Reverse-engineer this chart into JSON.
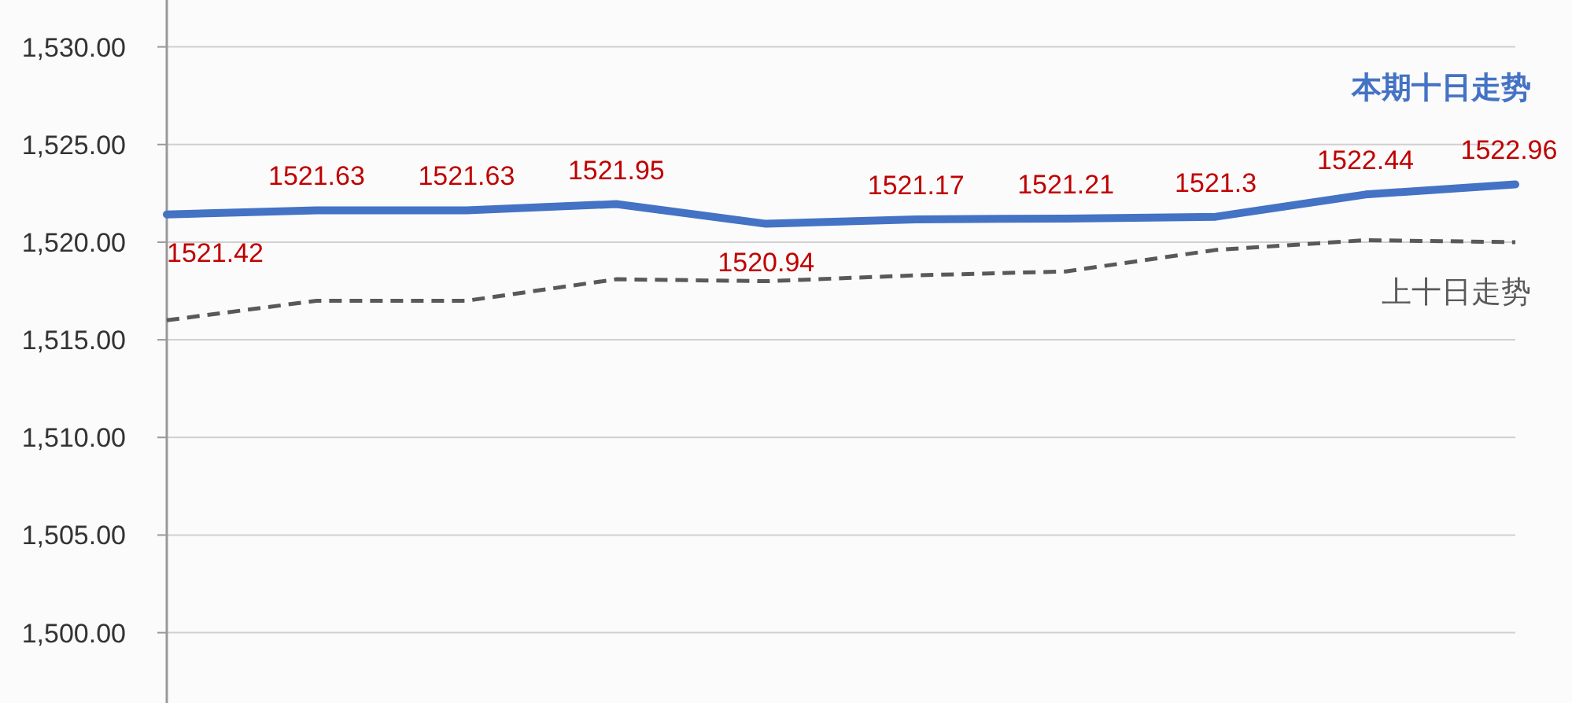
{
  "chart_data": {
    "type": "line",
    "categories": [
      null,
      null,
      null,
      null,
      null,
      null,
      null,
      null,
      null,
      null
    ],
    "series": [
      {
        "name": "本期十日走势",
        "color": "#4472c4",
        "line_style": "solid",
        "values": [
          1521.42,
          1521.63,
          1521.63,
          1521.95,
          1520.94,
          1521.17,
          1521.21,
          1521.3,
          1522.44,
          1522.96
        ],
        "value_labels": [
          "1521.42",
          "1521.63",
          "1521.63",
          "1521.95",
          "1520.94",
          "1521.17",
          "1521.21",
          "1521.3",
          "1522.44",
          "1522.96"
        ]
      },
      {
        "name": "上十日走势",
        "color": "#595959",
        "line_style": "dashed",
        "values": [
          1516.0,
          1517.0,
          1517.0,
          1518.1,
          1518.0,
          1518.3,
          1518.5,
          1519.6,
          1520.1,
          1520.0
        ]
      }
    ],
    "ylim": [
      1496.4,
      1532.4
    ],
    "yticks": [
      {
        "value": 1500,
        "label": "1,500.00"
      },
      {
        "value": 1505,
        "label": "1,505.00"
      },
      {
        "value": 1510,
        "label": "1,510.00"
      },
      {
        "value": 1515,
        "label": "1,515.00"
      },
      {
        "value": 1520,
        "label": "1,520.00"
      },
      {
        "value": 1525,
        "label": "1,525.00"
      },
      {
        "value": 1530,
        "label": "1,530.00"
      }
    ],
    "grid": "y",
    "legend": false,
    "marker": "none"
  }
}
